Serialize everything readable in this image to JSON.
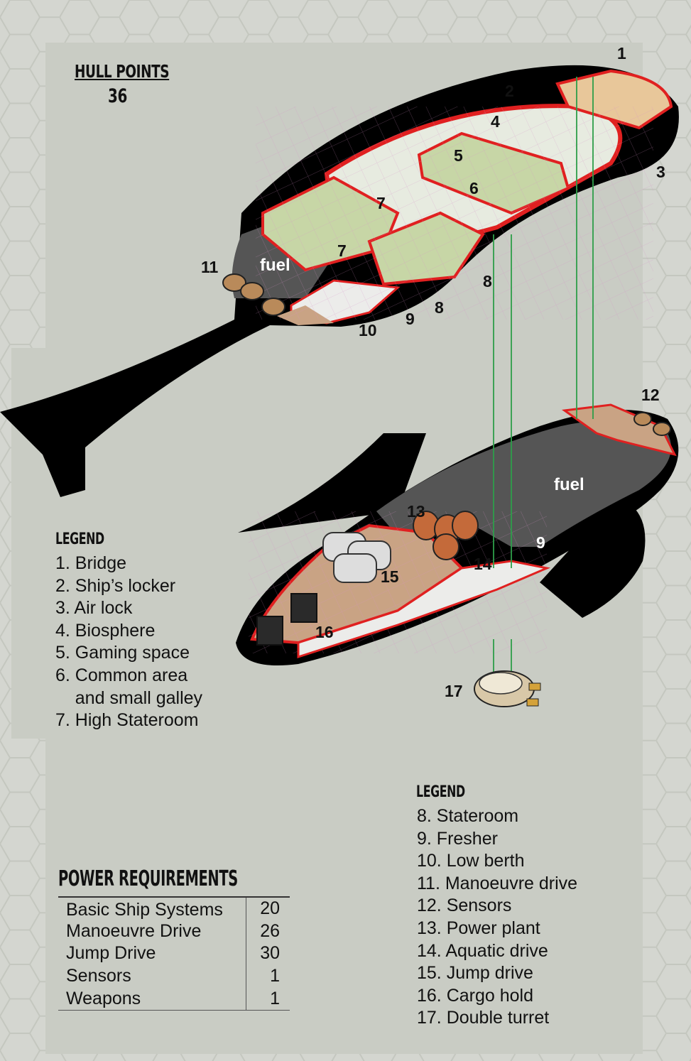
{
  "hull": {
    "title": "HULL POINTS",
    "value": "36"
  },
  "legend_left": {
    "title": "LEGEND",
    "items": [
      "1. Bridge",
      "2. Ship’s locker",
      "3. Air lock",
      "4. Biosphere",
      "5. Gaming space",
      "6. Common area",
      "    and small galley",
      "7. High Stateroom"
    ]
  },
  "legend_right": {
    "title": "LEGEND",
    "items": [
      "8. Stateroom",
      "9. Fresher",
      "10. Low berth",
      "11. Manoeuvre drive",
      "12. Sensors",
      "13. Power plant",
      "14. Aquatic drive",
      "15. Jump drive",
      "16. Cargo hold",
      "17. Double turret"
    ]
  },
  "power": {
    "title": "POWER REQUIREMENTS",
    "rows": [
      {
        "name": "Basic Ship Systems",
        "value": "20"
      },
      {
        "name": "Manoeuvre Drive",
        "value": "26"
      },
      {
        "name": "Jump Drive",
        "value": "30"
      },
      {
        "name": "Sensors",
        "value": "1"
      },
      {
        "name": "Weapons",
        "value": "1"
      }
    ]
  },
  "callouts": {
    "c1": "1",
    "c2": "2",
    "c3": "3",
    "c4": "4",
    "c5": "5",
    "c6": "6",
    "c7a": "7",
    "c7b": "7",
    "c8a": "8",
    "c8b": "8",
    "c9a": "9",
    "c10": "10",
    "c11": "11",
    "c12": "12",
    "c9b": "9",
    "c13": "13",
    "c14": "14",
    "c15": "15",
    "c16": "16",
    "c17": "17"
  },
  "fuel_upper": "fuel",
  "fuel_lower": "fuel",
  "colors": {
    "page": "#c9ccc4",
    "hull": "#000000",
    "wall": "#e02020",
    "biosphere": "#c7d6a6",
    "engineering": "#c9a384",
    "fuel_tank": "#555555",
    "corridor": "#ececea",
    "conduit": "#2e9e4a"
  }
}
